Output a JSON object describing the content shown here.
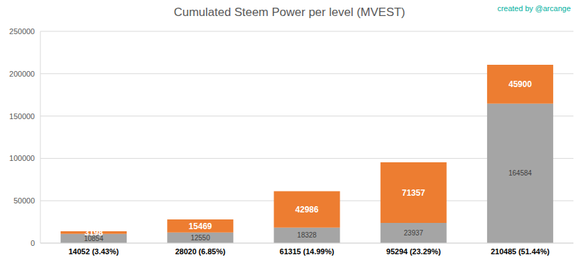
{
  "chart_data": {
    "type": "bar",
    "title": "Cumulated Steem Power per level (MVEST)",
    "annotation": "created by @arcange",
    "categories": [
      "14052 (3.43%)",
      "28020 (6.85%)",
      "61315 (14.99%)",
      "95294 (23.29%)",
      "210485 (51.44%)"
    ],
    "series": [
      {
        "color": "#a5a5a5",
        "values": [
          10854,
          12550,
          18328,
          23937,
          164584
        ]
      },
      {
        "color": "#ed7d31",
        "values": [
          3198,
          15469,
          42986,
          71357,
          45900
        ]
      }
    ],
    "stacked": true,
    "data_labels": true,
    "ylim": [
      0,
      250000
    ],
    "yticks": [
      0,
      50000,
      100000,
      150000,
      200000,
      250000
    ],
    "grid": true
  }
}
